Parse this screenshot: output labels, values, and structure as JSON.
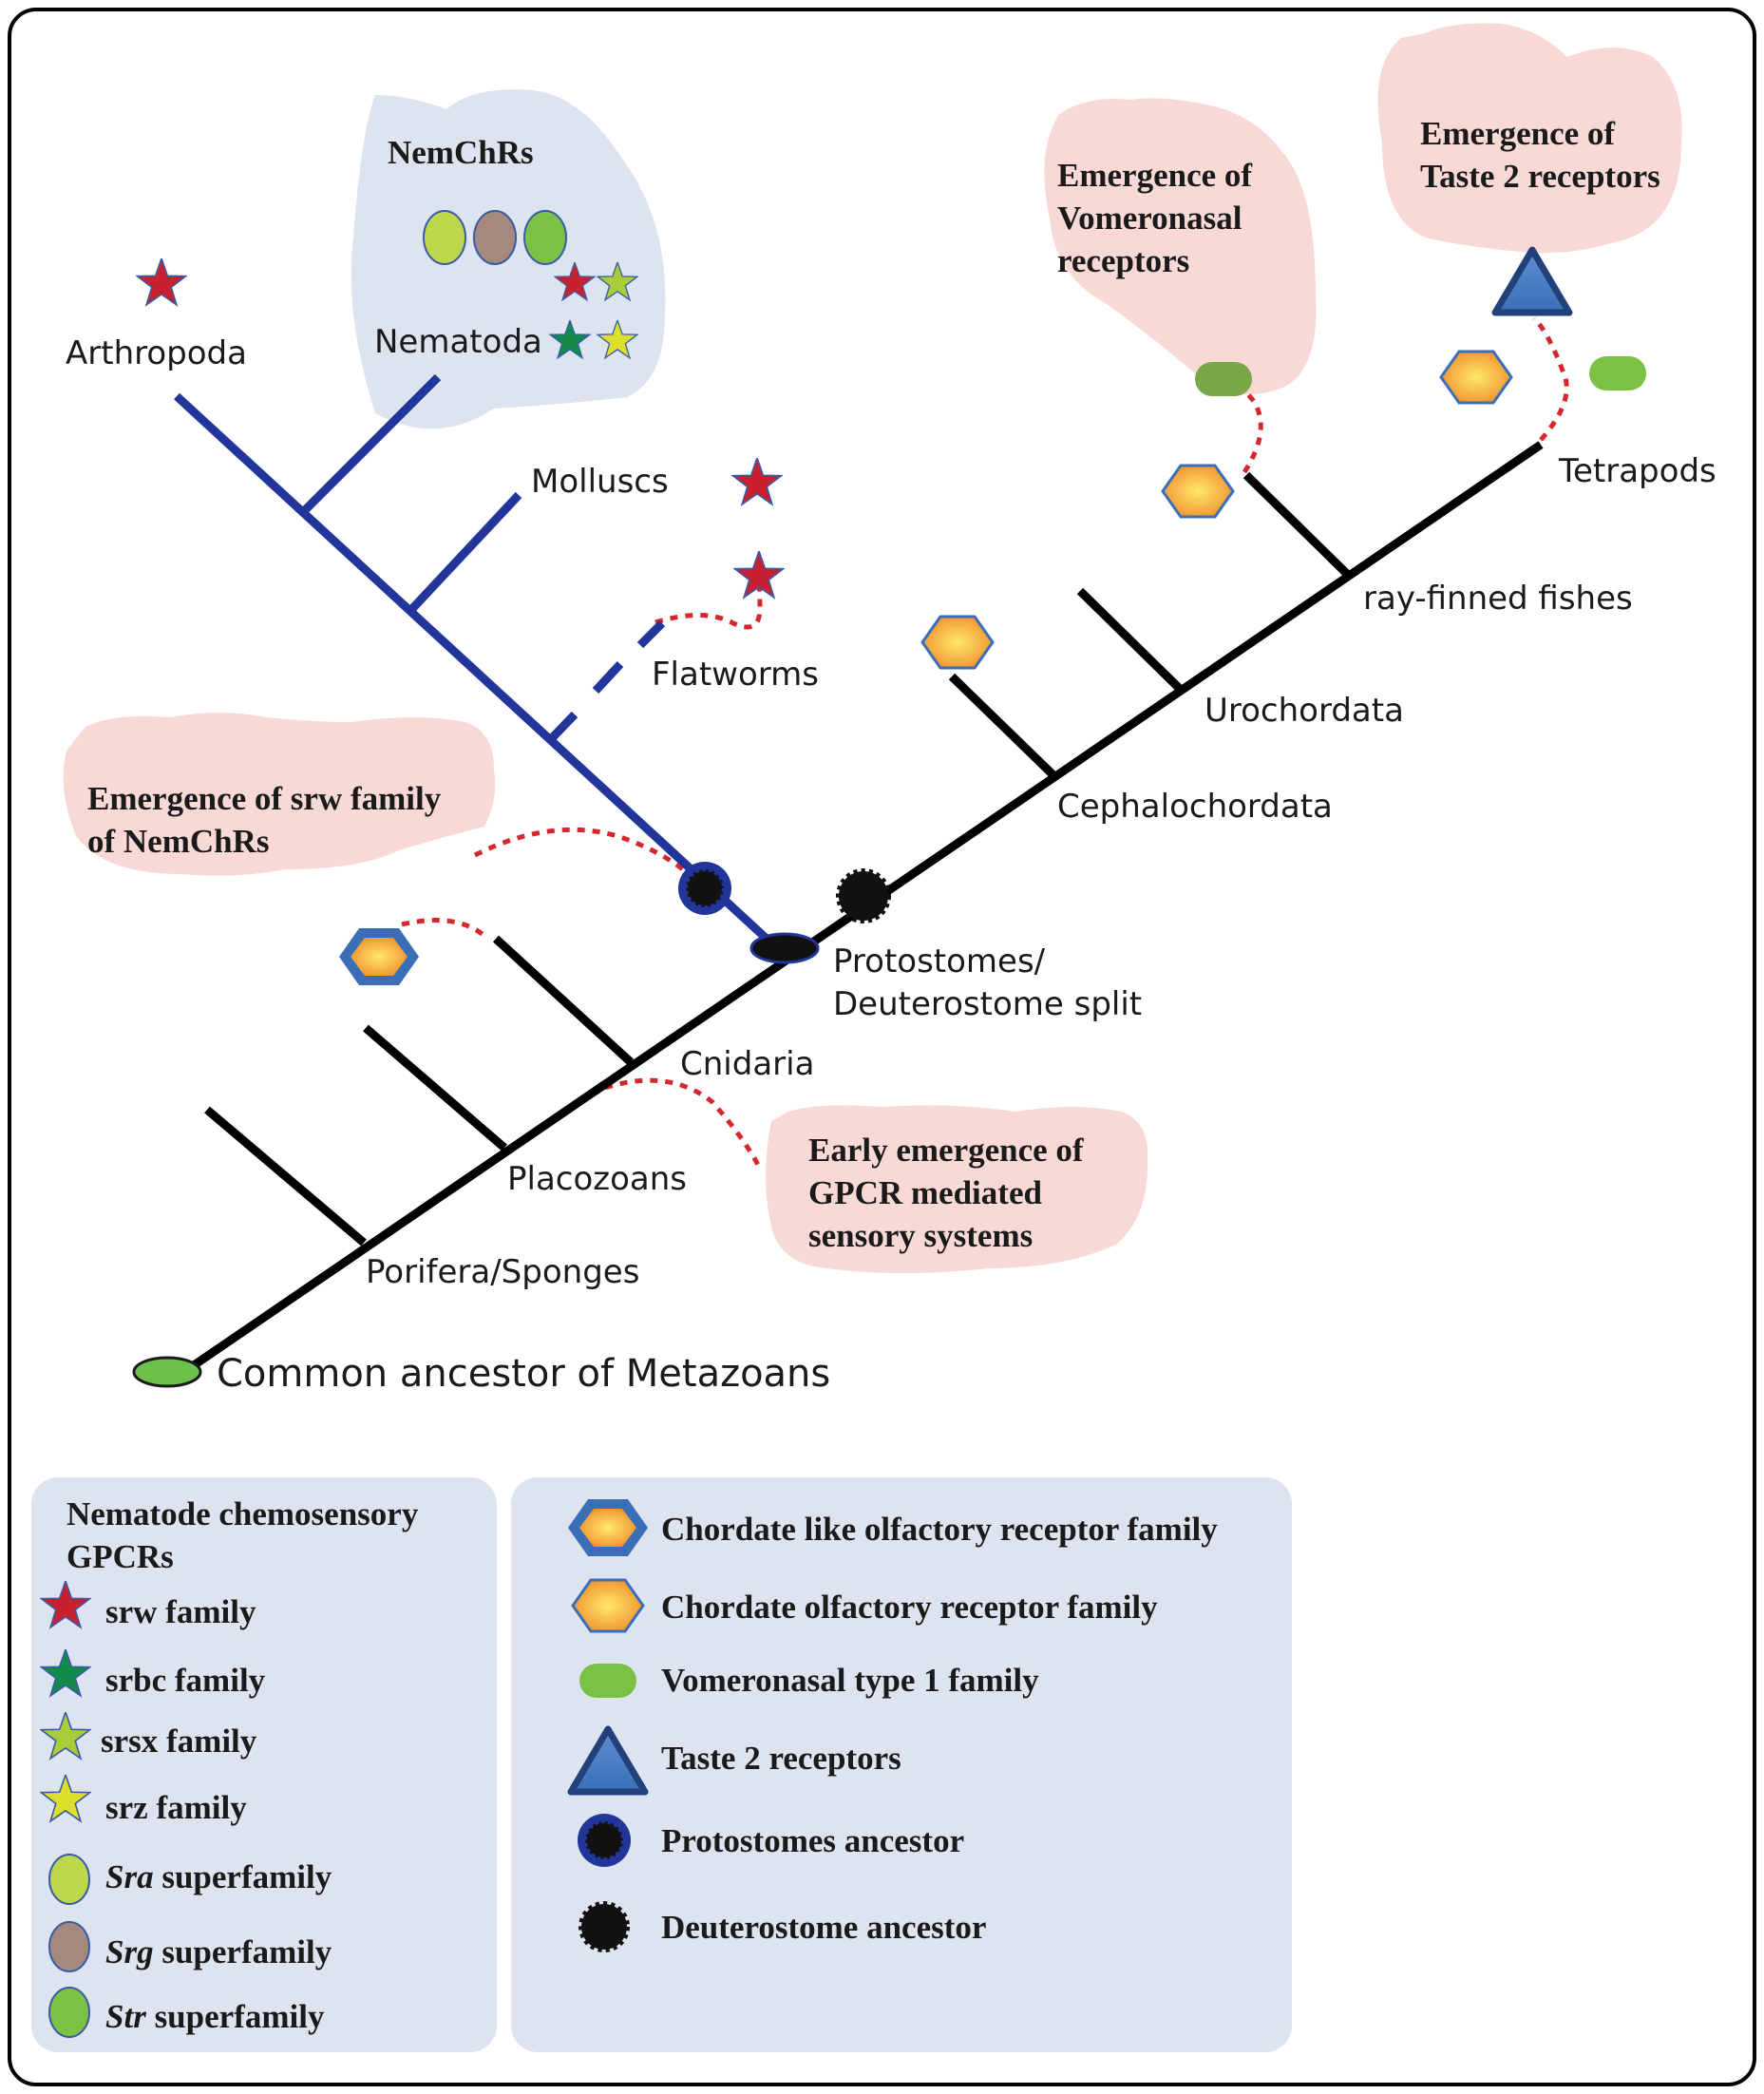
{
  "taxa": {
    "arthropoda": "Arthropoda",
    "nematoda": "Nematoda",
    "molluscs": "Molluscs",
    "flatworms": "Flatworms",
    "tetrapods": "Tetrapods",
    "ray_finned": "ray-finned fishes",
    "urochordata": "Urochordata",
    "cephalochordata": "Cephalochordata",
    "split_line1": "Protostomes/",
    "split_line2": "Deuterostome split",
    "cnidaria": "Cnidaria",
    "placozoans": "Placozoans",
    "porifera": "Porifera/Sponges",
    "root": "Common ancestor of Metazoans"
  },
  "callouts": {
    "nemchrs": "NemChRs",
    "vomeronasal": [
      "Emergence of",
      "Vomeronasal",
      "receptors"
    ],
    "taste2": [
      "Emergence of",
      "Taste 2 receptors"
    ],
    "srw": [
      "Emergence of srw family",
      "of NemChRs"
    ],
    "gpcr": [
      "Early emergence of",
      "GPCR mediated",
      "sensory systems"
    ]
  },
  "legend_left": {
    "title": [
      "Nematode chemosensory",
      "GPCRs"
    ],
    "items": [
      {
        "icon": "star-icon",
        "color": "#c8202f",
        "italic": "",
        "label": "srw family"
      },
      {
        "icon": "star-icon",
        "color": "#138a4a",
        "italic": "",
        "label": "srbc family"
      },
      {
        "icon": "star-icon",
        "color": "#a8cc3a",
        "italic": "",
        "label": "srsx family"
      },
      {
        "icon": "star-icon",
        "color": "#dde02a",
        "italic": "",
        "label": "srz family"
      },
      {
        "icon": "ellipse-icon",
        "color": "#bdd84a",
        "italic": "Sra",
        "label": " superfamily"
      },
      {
        "icon": "ellipse-icon",
        "color": "#a4897c",
        "italic": "Srg",
        "label": " superfamily"
      },
      {
        "icon": "ellipse-icon",
        "color": "#7bc143",
        "italic": "Str",
        "label": " superfamily"
      }
    ]
  },
  "legend_right": {
    "items": [
      {
        "icon": "hexagon-outlined-icon",
        "label": "Chordate like olfactory receptor family"
      },
      {
        "icon": "hexagon-icon",
        "label": "Chordate olfactory receptor family"
      },
      {
        "icon": "capsule-icon",
        "label": "Vomeronasal type 1 family"
      },
      {
        "icon": "triangle-icon",
        "label": "Taste 2 receptors"
      },
      {
        "icon": "blue-sun-icon",
        "label": "Protostomes ancestor"
      },
      {
        "icon": "black-sun-icon",
        "label": "Deuterostome ancestor"
      }
    ]
  },
  "colors": {
    "protostome_branch": "#22359a",
    "deuterostome_branch": "#000000",
    "callout_pink": "#f9d9d6",
    "callout_blue": "#dde4f0",
    "dotted": "#d4272e"
  }
}
